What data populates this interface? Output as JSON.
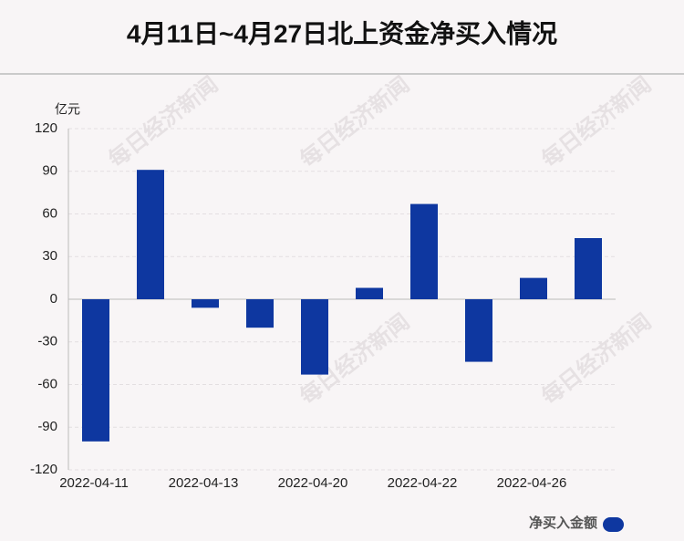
{
  "chart_data": {
    "type": "bar",
    "title": "4月11日~4月27日北上资金净买入情况",
    "y_unit": "亿元",
    "watermark": "每日经济新闻",
    "categories": [
      "2022-04-11",
      null,
      "2022-04-13",
      null,
      "2022-04-20",
      null,
      "2022-04-22",
      null,
      "2022-04-26",
      null
    ],
    "series": [
      {
        "name": "净买入金额",
        "color": "#0e37a0",
        "values": [
          -100,
          91,
          -6,
          -20,
          -53,
          8,
          67,
          -44,
          15,
          43
        ]
      }
    ],
    "ylim": [
      -120,
      120
    ],
    "yticks": [
      -120,
      -90,
      -60,
      -30,
      0,
      30,
      60,
      90,
      120
    ],
    "grid": true,
    "legend": "bottom-right"
  }
}
